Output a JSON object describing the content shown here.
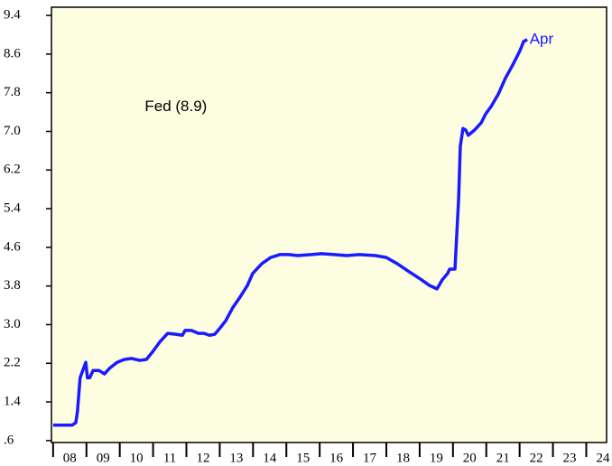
{
  "chart_data": {
    "type": "line",
    "annotations": [
      {
        "text": "Fed (8.9)",
        "x": 2010.75,
        "y": 7.5,
        "color": "#000000"
      },
      {
        "text": "Apr",
        "x": 2022.3,
        "y": 8.9,
        "color": "#1a1aff"
      }
    ],
    "x": [
      2008.0,
      2008.57,
      2008.68,
      2008.73,
      2008.81,
      2008.98,
      2009.03,
      2009.1,
      2009.2,
      2009.38,
      2009.54,
      2009.7,
      2009.92,
      2010.14,
      2010.36,
      2010.6,
      2010.8,
      2011.0,
      2011.2,
      2011.44,
      2011.68,
      2011.88,
      2011.96,
      2012.15,
      2012.36,
      2012.53,
      2012.69,
      2012.85,
      2013.01,
      2013.18,
      2013.39,
      2013.61,
      2013.83,
      2013.99,
      2014.26,
      2014.53,
      2014.8,
      2015.07,
      2015.34,
      2015.75,
      2016.05,
      2016.43,
      2016.81,
      2017.19,
      2017.67,
      2018.0,
      2018.33,
      2018.65,
      2019.03,
      2019.3,
      2019.52,
      2019.68,
      2019.84,
      2019.9,
      2020.06,
      2020.17,
      2020.22,
      2020.3,
      2020.38,
      2020.46,
      2020.65,
      2020.85,
      2020.98,
      2021.14,
      2021.36,
      2021.58,
      2021.79,
      2022.01,
      2022.12,
      2022.23
    ],
    "series": [
      {
        "color": "#1a1aff",
        "values": [
          0.92,
          0.92,
          0.97,
          1.2,
          1.9,
          2.22,
          1.9,
          1.9,
          2.05,
          2.05,
          1.98,
          2.1,
          2.22,
          2.28,
          2.3,
          2.26,
          2.28,
          2.45,
          2.64,
          2.82,
          2.8,
          2.78,
          2.88,
          2.88,
          2.82,
          2.82,
          2.78,
          2.8,
          2.93,
          3.08,
          3.35,
          3.57,
          3.81,
          4.06,
          4.26,
          4.39,
          4.45,
          4.45,
          4.43,
          4.45,
          4.47,
          4.45,
          4.43,
          4.45,
          4.43,
          4.39,
          4.26,
          4.11,
          3.94,
          3.81,
          3.74,
          3.93,
          4.06,
          4.15,
          4.15,
          5.61,
          6.69,
          7.06,
          7.03,
          6.92,
          7.03,
          7.18,
          7.36,
          7.51,
          7.77,
          8.11,
          8.37,
          8.67,
          8.86,
          8.9
        ]
      }
    ],
    "xlim": [
      2007.95,
      2024.61
    ],
    "xticks": [
      {
        "value": 2008,
        "label": "08"
      },
      {
        "value": 2009,
        "label": "09"
      },
      {
        "value": 2010,
        "label": "10"
      },
      {
        "value": 2011,
        "label": "11"
      },
      {
        "value": 2012,
        "label": "12"
      },
      {
        "value": 2013,
        "label": "13"
      },
      {
        "value": 2014,
        "label": "14"
      },
      {
        "value": 2015,
        "label": "15"
      },
      {
        "value": 2016,
        "label": "16"
      },
      {
        "value": 2017,
        "label": "17"
      },
      {
        "value": 2018,
        "label": "18"
      },
      {
        "value": 2019,
        "label": "19"
      },
      {
        "value": 2020,
        "label": "20"
      },
      {
        "value": 2021,
        "label": "21"
      },
      {
        "value": 2022,
        "label": "22"
      },
      {
        "value": 2023,
        "label": "23"
      },
      {
        "value": 2024,
        "label": "24"
      }
    ],
    "ylim": [
      0.56,
      9.57
    ],
    "yticks": [
      {
        "value": 0.6,
        "label": ".6"
      },
      1.4,
      2.2,
      {
        "value": 3,
        "label": "3.0"
      },
      3.8,
      4.6,
      5.4,
      6.2,
      {
        "value": 7,
        "label": "7.0"
      },
      7.8,
      8.6,
      9.4
    ],
    "background": "#fdfde2"
  }
}
